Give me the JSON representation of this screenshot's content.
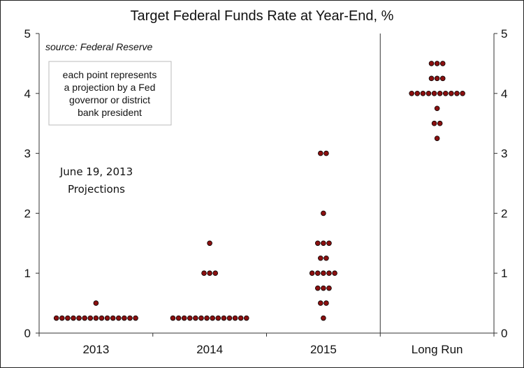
{
  "chart_data": {
    "type": "scatter",
    "title": "Target Federal Funds Rate at Year-End, %",
    "xlabel": "",
    "ylabel": "",
    "categories": [
      "2013",
      "2014",
      "2015",
      "Long Run"
    ],
    "ylim": [
      0,
      5
    ],
    "yticks": [
      "0",
      "1",
      "2",
      "3",
      "4",
      "5"
    ],
    "grid": false,
    "secondary_y_axis": true,
    "divider_before_category": "Long Run",
    "marker_color": "#8B1010",
    "points": [
      {
        "category": "2013",
        "y": 0.25,
        "count": 15
      },
      {
        "category": "2013",
        "y": 0.5,
        "count": 1
      },
      {
        "category": "2014",
        "y": 0.25,
        "count": 14
      },
      {
        "category": "2014",
        "y": 1.0,
        "count": 3
      },
      {
        "category": "2014",
        "y": 1.5,
        "count": 1
      },
      {
        "category": "2015",
        "y": 0.25,
        "count": 1
      },
      {
        "category": "2015",
        "y": 0.5,
        "count": 2
      },
      {
        "category": "2015",
        "y": 0.75,
        "count": 3
      },
      {
        "category": "2015",
        "y": 1.0,
        "count": 5
      },
      {
        "category": "2015",
        "y": 1.25,
        "count": 2
      },
      {
        "category": "2015",
        "y": 1.5,
        "count": 3
      },
      {
        "category": "2015",
        "y": 2.0,
        "count": 1
      },
      {
        "category": "2015",
        "y": 3.0,
        "count": 2
      },
      {
        "category": "Long Run",
        "y": 3.25,
        "count": 1
      },
      {
        "category": "Long Run",
        "y": 3.5,
        "count": 2
      },
      {
        "category": "Long Run",
        "y": 3.75,
        "count": 1
      },
      {
        "category": "Long Run",
        "y": 4.0,
        "count": 10
      },
      {
        "category": "Long Run",
        "y": 4.25,
        "count": 3
      },
      {
        "category": "Long Run",
        "y": 4.5,
        "count": 3
      }
    ],
    "annotations": {
      "source": "source: Federal Reserve",
      "note_lines": [
        "each point represents",
        "a projection by a Fed",
        "governor or district",
        "bank president"
      ],
      "projection_lines": [
        "June 19, 2013",
        "Projections"
      ]
    }
  }
}
